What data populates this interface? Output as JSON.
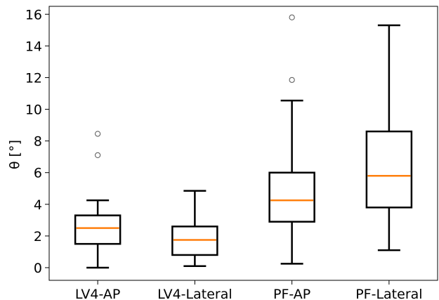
{
  "chart_data": {
    "type": "boxplot",
    "title": "",
    "xlabel": "",
    "ylabel": "θ [°]",
    "ylim": [
      -0.8,
      16.5
    ],
    "yticks": [
      0,
      2,
      4,
      6,
      8,
      10,
      12,
      14,
      16
    ],
    "grid": false,
    "categories": [
      "LV4-AP",
      "LV4-Lateral",
      "PF-AP",
      "PF-Lateral"
    ],
    "series": [
      {
        "whisker_low": 0.0,
        "q1": 1.5,
        "median": 2.5,
        "q3": 3.3,
        "whisker_high": 4.25,
        "outliers": [
          7.1,
          8.45
        ]
      },
      {
        "whisker_low": 0.1,
        "q1": 0.8,
        "median": 1.75,
        "q3": 2.6,
        "whisker_high": 4.85,
        "outliers": []
      },
      {
        "whisker_low": 0.25,
        "q1": 2.9,
        "median": 4.25,
        "q3": 6.0,
        "whisker_high": 10.55,
        "outliers": [
          11.85,
          15.8
        ]
      },
      {
        "whisker_low": 1.1,
        "q1": 3.8,
        "median": 5.8,
        "q3": 8.6,
        "whisker_high": 15.3,
        "outliers": []
      }
    ],
    "colors": {
      "box": "#000000",
      "median": "#ff7f0e",
      "outlier": "#555555",
      "axis": "#000000"
    }
  }
}
